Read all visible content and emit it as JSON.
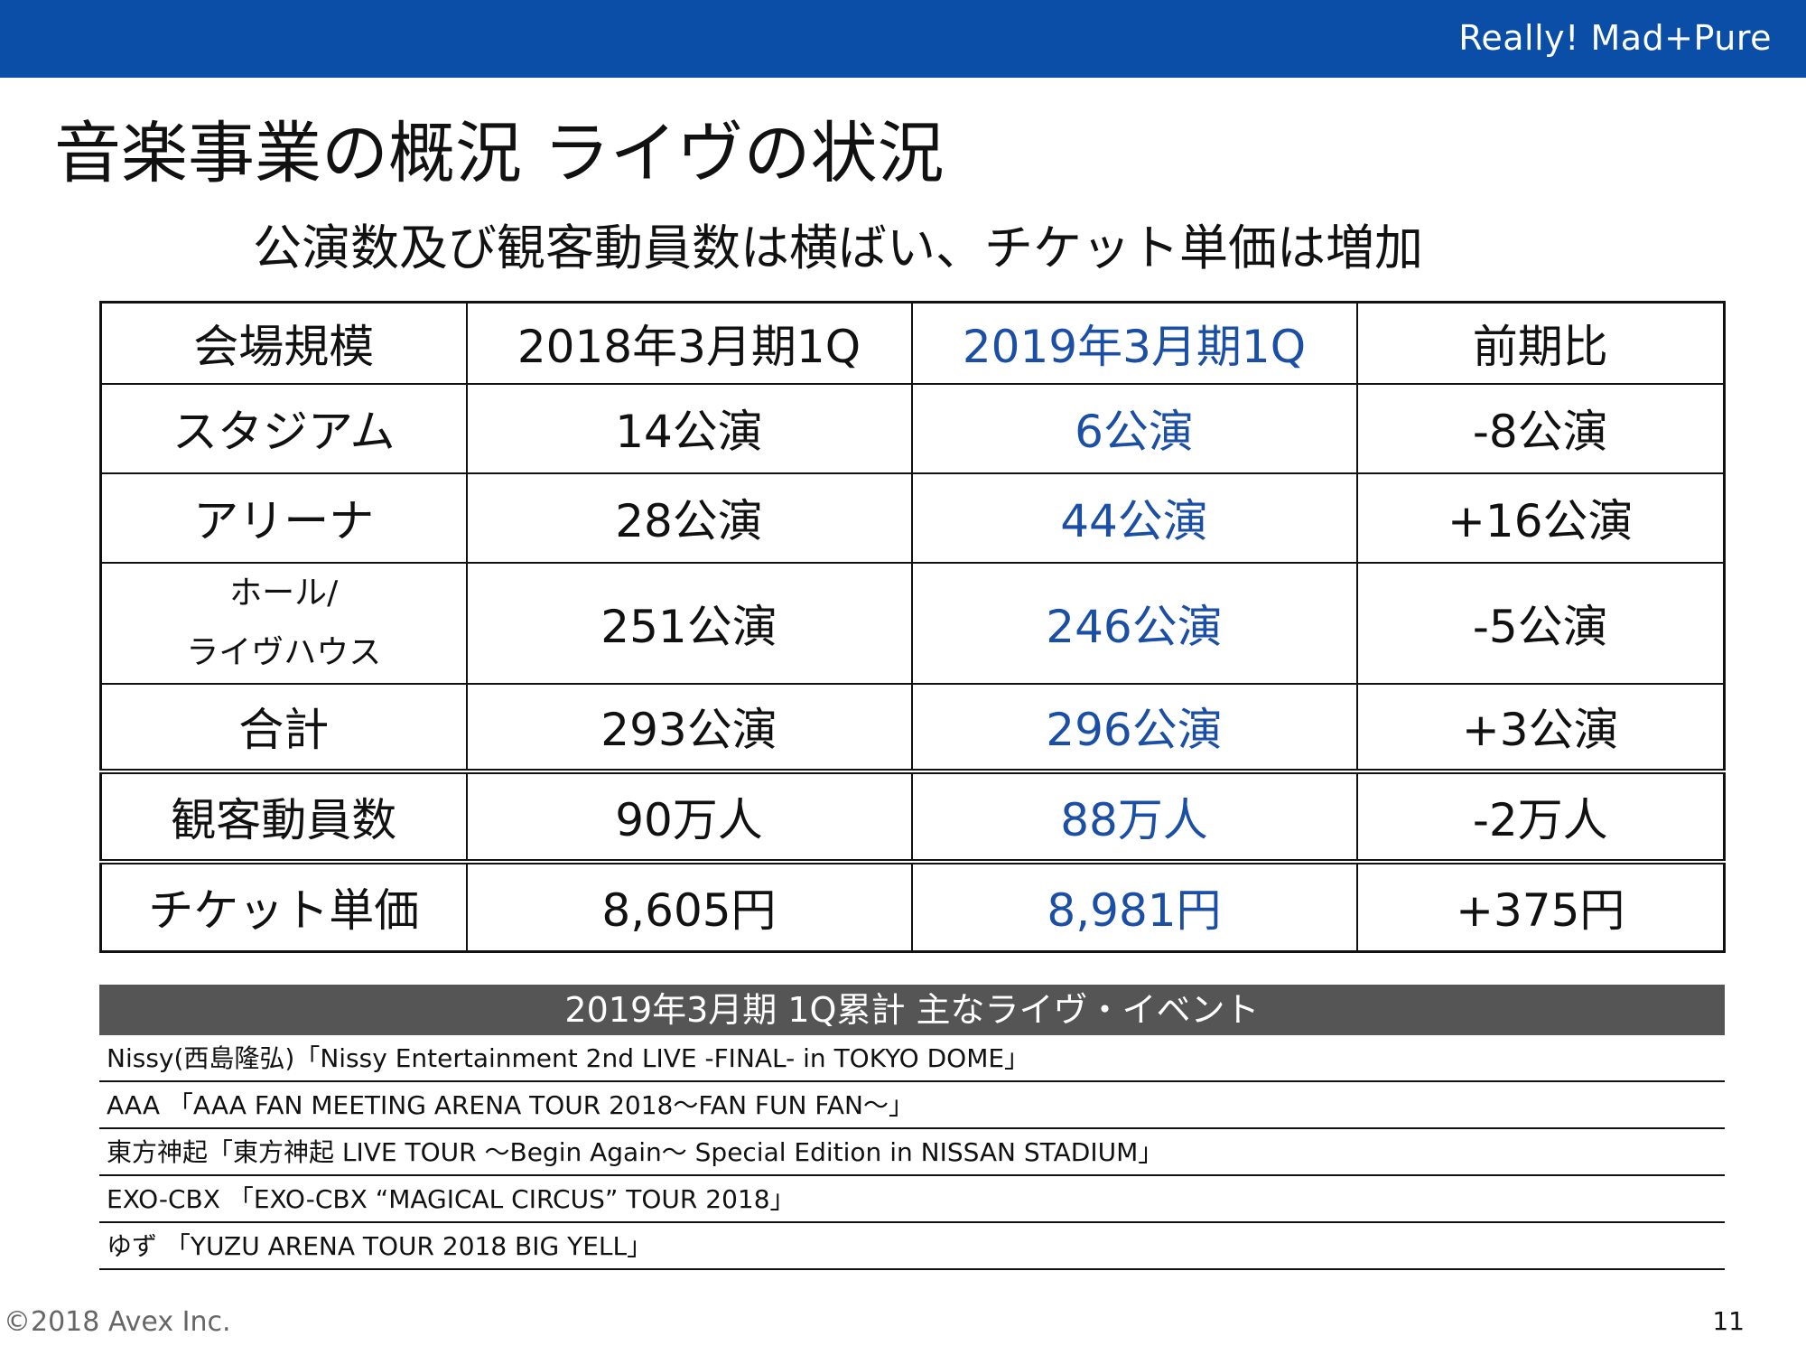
{
  "header": {
    "brand": "Really! Mad+Pure",
    "accent_color": "#0a4ea8"
  },
  "title": "音楽事業の概況 ライヴの状況",
  "subtitle": "公演数及び観客動員数は横ばい、チケット単価は増加",
  "table": {
    "headers": [
      "会場規模",
      "2018年3月期1Q",
      "2019年3月期1Q",
      "前期比"
    ],
    "rows": [
      [
        "スタジアム",
        "14公演",
        "6公演",
        "-8公演"
      ],
      [
        "アリーナ",
        "28公演",
        "44公演",
        "+16公演"
      ],
      [
        "ホール/",
        "251公演",
        "246公演",
        "-5公演"
      ],
      [
        "合計",
        "293公演",
        "296公演",
        "+3公演"
      ],
      [
        "観客動員数",
        "90万人",
        "88万人",
        "-2万人"
      ],
      [
        "チケット単価",
        "8,605円",
        "8,981円",
        "+375円"
      ]
    ],
    "hall_label_line2": "ライヴハウス",
    "highlight_color": "#1b4fa6"
  },
  "events": {
    "header": "2019年3月期 1Q累計 主なライヴ・イベント",
    "items": [
      "Nissy(西島隆弘)「Nissy Entertainment 2nd LIVE -FINAL- in TOKYO DOME」",
      "AAA 「AAA FAN MEETING ARENA TOUR 2018〜FAN FUN FAN〜」",
      "東方神起「東方神起 LIVE TOUR 〜Begin Again〜 Special Edition in NISSAN STADIUM」",
      "EXO-CBX 「EXO-CBX “MAGICAL CIRCUS” TOUR 2018」",
      "ゆず 「YUZU ARENA TOUR 2018 BIG YELL」"
    ]
  },
  "footer": {
    "copyright": "©2018 Avex Inc.",
    "page_number": "11"
  }
}
